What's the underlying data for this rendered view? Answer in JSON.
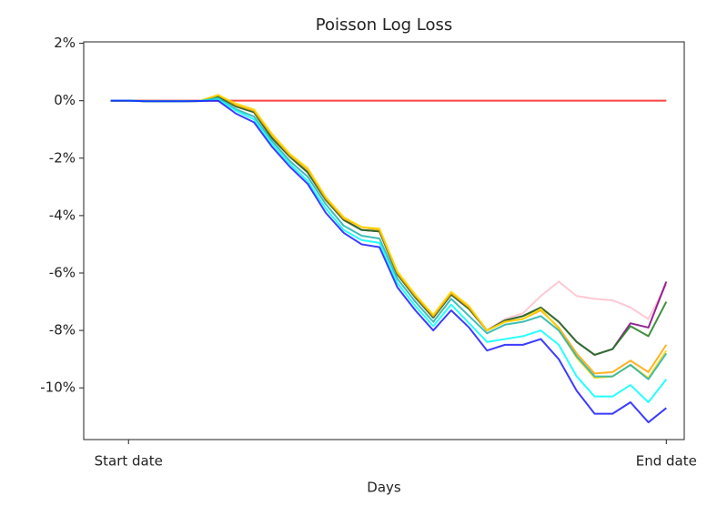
{
  "chart_data": {
    "type": "line",
    "title": "Poisson Log Loss",
    "xlabel": "Days",
    "x": [
      0,
      1,
      2,
      3,
      4,
      5,
      6,
      7,
      8,
      9,
      10,
      11,
      12,
      13,
      14,
      15,
      16,
      17,
      18,
      19,
      20,
      21,
      22,
      23,
      24,
      25,
      26,
      27,
      28,
      29,
      30,
      31
    ],
    "xlim": [
      -1.5,
      32
    ],
    "xticks": [
      {
        "value": 1,
        "label": "Start date"
      },
      {
        "value": 31,
        "label": "End date"
      }
    ],
    "ylim": [
      -11.8,
      2.05
    ],
    "yticks": [
      {
        "value": 2,
        "label": "2%"
      },
      {
        "value": 0,
        "label": "0%"
      },
      {
        "value": -2,
        "label": "-2%"
      },
      {
        "value": -4,
        "label": "-4%"
      },
      {
        "value": -6,
        "label": "-6%"
      },
      {
        "value": -8,
        "label": "-8%"
      },
      {
        "value": -10,
        "label": "-10%"
      }
    ],
    "grid": false,
    "series": [
      {
        "color": "#ff2020",
        "values": [
          0,
          0,
          0,
          0,
          0,
          0,
          0,
          0,
          0,
          0,
          0,
          0,
          0,
          0,
          0,
          0,
          0,
          0,
          0,
          0,
          0,
          0,
          0,
          0,
          0,
          0,
          0,
          0,
          0,
          0,
          0,
          0
        ]
      },
      {
        "color": "#ffc0cb",
        "values": [
          0,
          0,
          -0.02,
          -0.02,
          -0.02,
          -0.01,
          0.15,
          -0.2,
          -0.4,
          -1.3,
          -1.95,
          -2.5,
          -3.45,
          -4.15,
          -4.5,
          -4.55,
          -6.05,
          -6.85,
          -7.55,
          -6.75,
          -7.25,
          -8.0,
          -7.6,
          -7.4,
          -6.8,
          -6.3,
          -6.8,
          -6.9,
          -6.95,
          -7.2,
          -7.6,
          -6.4
        ]
      },
      {
        "color": "#800080",
        "values": [
          0,
          0,
          -0.02,
          -0.02,
          -0.02,
          -0.01,
          0.15,
          -0.2,
          -0.4,
          -1.3,
          -1.95,
          -2.5,
          -3.45,
          -4.15,
          -4.5,
          -4.55,
          -6.05,
          -6.85,
          -7.55,
          -6.75,
          -7.25,
          -8.0,
          -7.65,
          -7.5,
          -7.2,
          -7.7,
          -8.4,
          -8.85,
          -8.65,
          -7.75,
          -7.9,
          -6.3
        ]
      },
      {
        "color": "#1e7a1e",
        "values": [
          0,
          0,
          -0.02,
          -0.02,
          -0.02,
          -0.01,
          0.15,
          -0.2,
          -0.4,
          -1.3,
          -1.95,
          -2.5,
          -3.45,
          -4.15,
          -4.5,
          -4.55,
          -6.05,
          -6.85,
          -7.55,
          -6.75,
          -7.25,
          -8.0,
          -7.65,
          -7.5,
          -7.2,
          -7.7,
          -8.4,
          -8.85,
          -8.65,
          -7.85,
          -8.2,
          -7.0
        ]
      },
      {
        "color": "#ffa500",
        "values": [
          0,
          0,
          -0.02,
          -0.02,
          -0.02,
          -0.01,
          0.2,
          -0.15,
          -0.35,
          -1.2,
          -1.9,
          -2.4,
          -3.4,
          -4.1,
          -4.4,
          -4.5,
          -6.0,
          -6.8,
          -7.5,
          -6.7,
          -7.2,
          -8.0,
          -7.7,
          -7.6,
          -7.3,
          -7.9,
          -8.8,
          -9.5,
          -9.45,
          -9.05,
          -9.45,
          -8.5
        ]
      },
      {
        "color": "#ffd700",
        "values": [
          0,
          0,
          -0.02,
          -0.02,
          -0.02,
          -0.01,
          0.2,
          -0.1,
          -0.3,
          -1.15,
          -1.85,
          -2.35,
          -3.35,
          -4.05,
          -4.4,
          -4.45,
          -5.95,
          -6.75,
          -7.45,
          -6.65,
          -7.15,
          -8.0,
          -7.7,
          -7.6,
          -7.25,
          -7.95,
          -8.95,
          -9.65,
          -9.6,
          -9.2,
          -9.65,
          -8.7
        ]
      },
      {
        "color": "#20b2aa",
        "values": [
          0,
          0,
          -0.02,
          -0.02,
          -0.02,
          -0.01,
          0.1,
          -0.3,
          -0.55,
          -1.4,
          -2.1,
          -2.65,
          -3.6,
          -4.35,
          -4.7,
          -4.8,
          -6.2,
          -7.0,
          -7.7,
          -6.9,
          -7.5,
          -8.1,
          -7.8,
          -7.7,
          -7.5,
          -8.0,
          -8.9,
          -9.6,
          -9.6,
          -9.2,
          -9.7,
          -8.8
        ]
      },
      {
        "color": "#00ffff",
        "values": [
          0,
          0,
          -0.02,
          -0.02,
          -0.02,
          -0.01,
          0.05,
          -0.35,
          -0.65,
          -1.5,
          -2.2,
          -2.8,
          -3.75,
          -4.5,
          -4.85,
          -4.95,
          -6.35,
          -7.15,
          -7.85,
          -7.1,
          -7.75,
          -8.4,
          -8.3,
          -8.2,
          -8.0,
          -8.5,
          -9.6,
          -10.3,
          -10.3,
          -9.9,
          -10.5,
          -9.7
        ]
      },
      {
        "color": "#1a1aff",
        "values": [
          0,
          0,
          -0.02,
          -0.02,
          -0.02,
          -0.01,
          0,
          -0.45,
          -0.75,
          -1.6,
          -2.3,
          -2.9,
          -3.9,
          -4.6,
          -5.0,
          -5.1,
          -6.5,
          -7.3,
          -8.0,
          -7.3,
          -7.9,
          -8.7,
          -8.5,
          -8.5,
          -8.3,
          -9.0,
          -10.1,
          -10.9,
          -10.9,
          -10.5,
          -11.2,
          -10.7
        ]
      }
    ]
  }
}
